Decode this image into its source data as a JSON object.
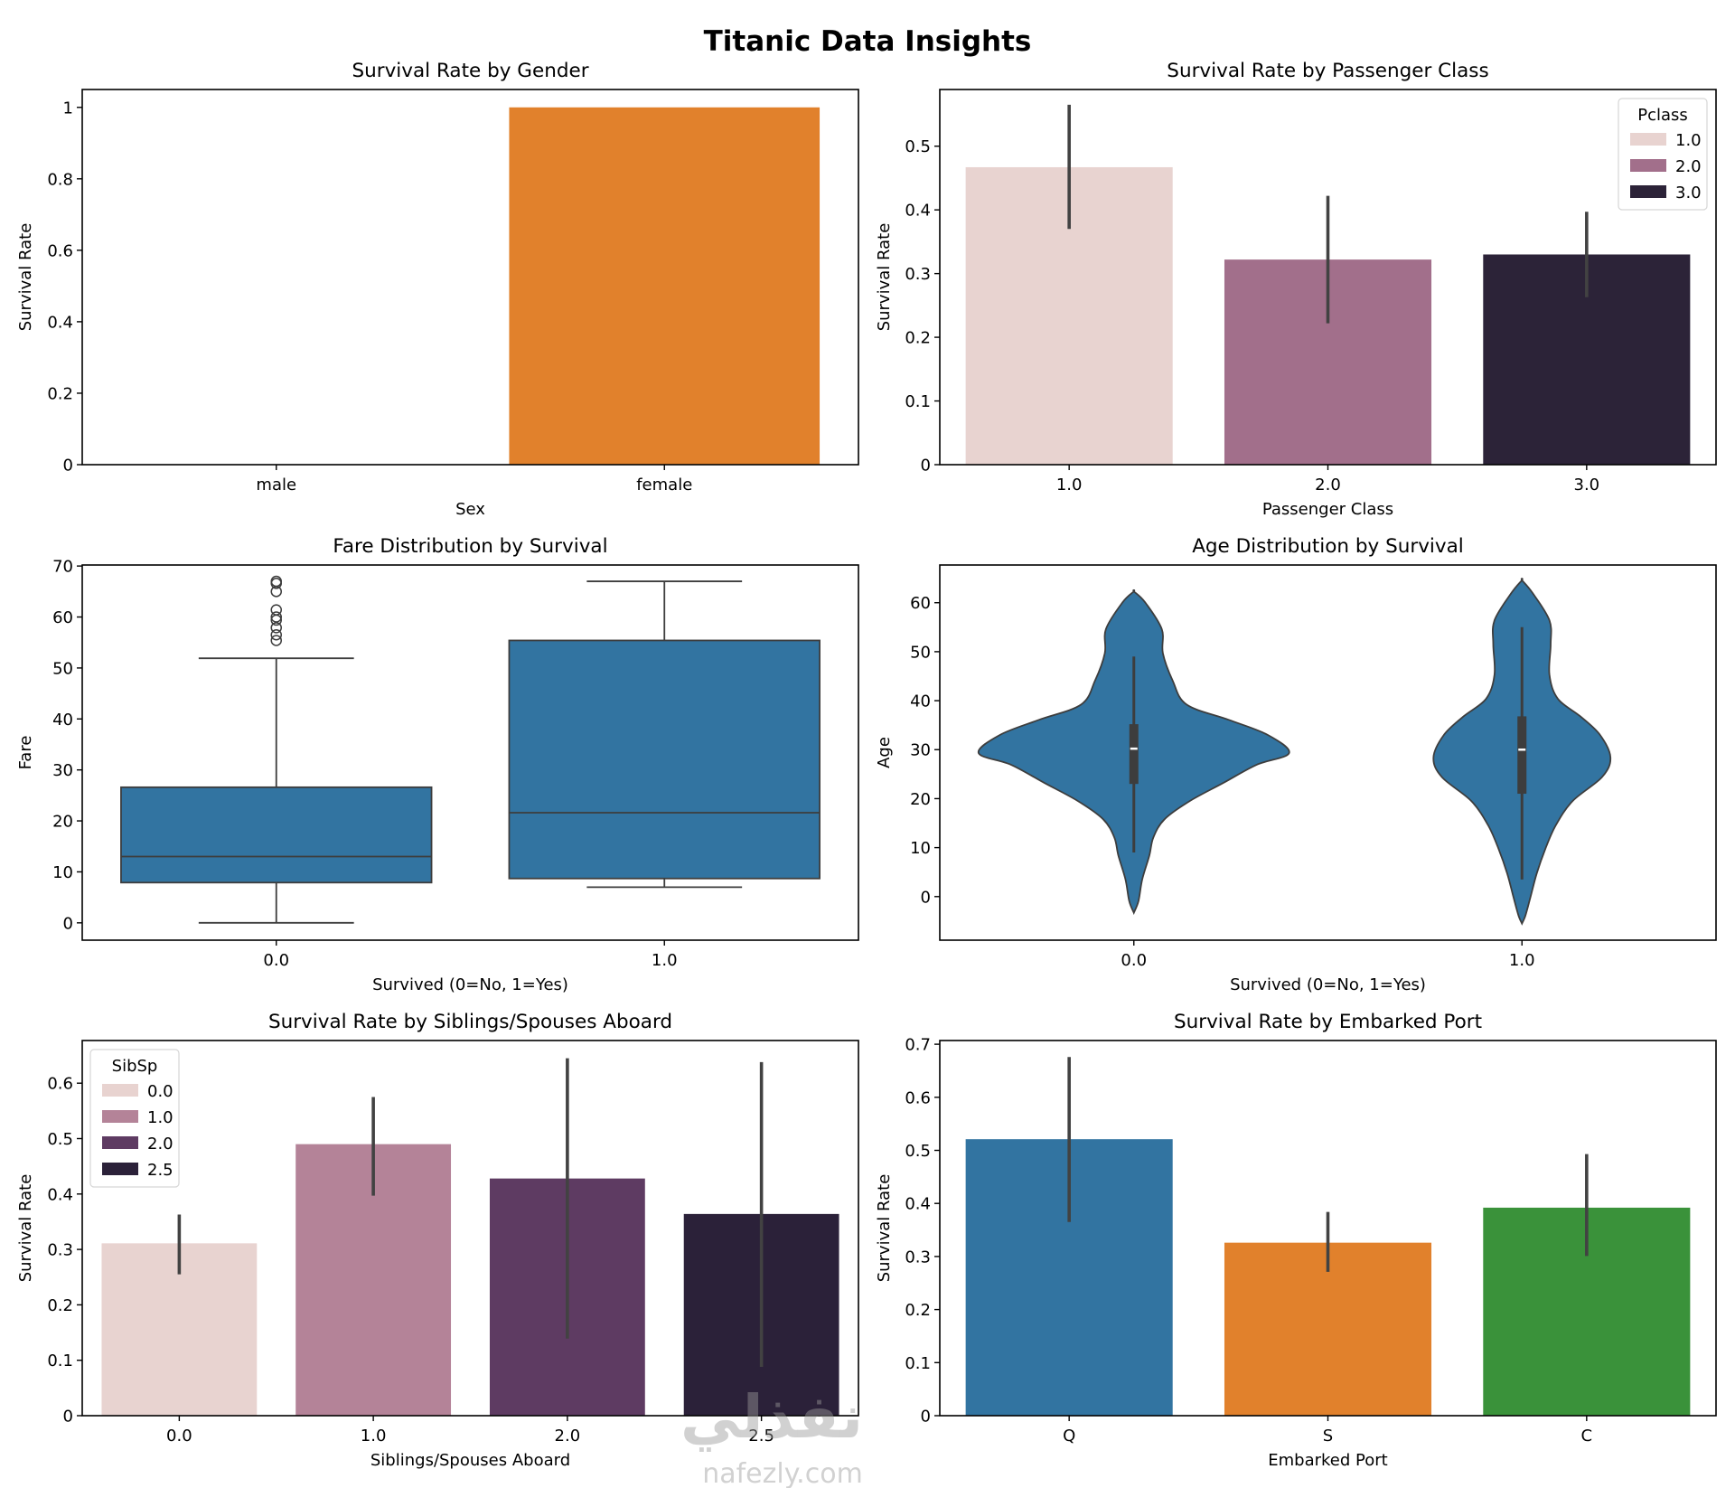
{
  "figure": {
    "title": "Titanic Data Insights",
    "watermark": {
      "arabic": "نفذلي",
      "latin": "nafezly.com"
    }
  },
  "chart_data": [
    {
      "id": "gender",
      "type": "bar",
      "title": "Survival Rate by Gender",
      "xlabel": "Sex",
      "ylabel": "Survival Rate",
      "categories": [
        "male",
        "female"
      ],
      "values": [
        0.0,
        1.0
      ],
      "colors": [
        "#3274a1",
        "#e1812c"
      ],
      "ylim": [
        0,
        1.05
      ],
      "yticks": [
        0.0,
        0.2,
        0.4,
        0.6,
        0.8,
        1.0
      ],
      "ytick_labels": [
        "0.0",
        "0.2",
        "0.4",
        "0.6",
        "0.8",
        "1.0"
      ],
      "grid": false,
      "legend": null
    },
    {
      "id": "pclass",
      "type": "bar",
      "title": "Survival Rate by Passenger Class",
      "xlabel": "Passenger Class",
      "ylabel": "Survival Rate",
      "categories": [
        "1.0",
        "2.0",
        "3.0"
      ],
      "values": [
        0.467,
        0.322,
        0.33
      ],
      "ci": [
        [
          0.37,
          0.565
        ],
        [
          0.222,
          0.422
        ],
        [
          0.263,
          0.397
        ]
      ],
      "colors": [
        "#e8d3d0",
        "#a26f8b",
        "#2c2338"
      ],
      "ylim": [
        0,
        0.589
      ],
      "yticks": [
        0.0,
        0.1,
        0.2,
        0.3,
        0.4,
        0.5
      ],
      "ytick_labels": [
        "0.0",
        "0.1",
        "0.2",
        "0.3",
        "0.4",
        "0.5"
      ],
      "grid": false,
      "legend": {
        "title": "Pclass",
        "labels": [
          "1.0",
          "2.0",
          "3.0"
        ],
        "placement": "top-right"
      }
    },
    {
      "id": "fare",
      "type": "box",
      "title": "Fare Distribution by Survival",
      "xlabel": "Survived (0=No, 1=Yes)",
      "ylabel": "Fare",
      "categories": [
        "0.0",
        "1.0"
      ],
      "boxes": [
        {
          "whisker_low": 0.0,
          "q1": 7.9,
          "median": 13.0,
          "q3": 26.6,
          "whisker_high": 51.9,
          "outliers": [
            55.4,
            56.5,
            57.9,
            59.4,
            60.0,
            61.4,
            65.0,
            66.6,
            67.0
          ]
        },
        {
          "whisker_low": 7.0,
          "q1": 8.7,
          "median": 21.6,
          "q3": 55.4,
          "whisker_high": 67.0,
          "outliers": []
        }
      ],
      "color": "#3274a1",
      "ylim": [
        -3.4,
        70.2
      ],
      "yticks": [
        0,
        10,
        20,
        30,
        40,
        50,
        60,
        70
      ],
      "ytick_labels": [
        "0",
        "10",
        "20",
        "30",
        "40",
        "50",
        "60",
        "70"
      ],
      "grid": false,
      "legend": null
    },
    {
      "id": "age",
      "type": "violin",
      "title": "Age Distribution by Survival",
      "xlabel": "Survived (0=No, 1=Yes)",
      "ylabel": "Age",
      "categories": [
        "0.0",
        "1.0"
      ],
      "violins": [
        {
          "q1": 23.0,
          "median": 30.2,
          "q3": 35.2,
          "whisker_low": 9.0,
          "whisker_high": 49.0,
          "density": [
            [
              -3.3,
              0.0
            ],
            [
              -0.9,
              0.03
            ],
            [
              3.5,
              0.054
            ],
            [
              8.4,
              0.1
            ],
            [
              12.1,
              0.126
            ],
            [
              15.8,
              0.198
            ],
            [
              19.5,
              0.36
            ],
            [
              23.2,
              0.576
            ],
            [
              26.9,
              0.79
            ],
            [
              29.3,
              1.0
            ],
            [
              33.0,
              0.863
            ],
            [
              36.1,
              0.61
            ],
            [
              39.2,
              0.34
            ],
            [
              44.1,
              0.25
            ],
            [
              49.7,
              0.187
            ],
            [
              54.6,
              0.18
            ],
            [
              60.1,
              0.072
            ],
            [
              62.3,
              0.0
            ]
          ]
        },
        {
          "q1": 21.0,
          "median": 30.0,
          "q3": 36.8,
          "whisker_low": 3.5,
          "whisker_high": 55.0,
          "density": [
            [
              -5.5,
              0.0
            ],
            [
              -3.9,
              0.022
            ],
            [
              -0.2,
              0.054
            ],
            [
              4.7,
              0.095
            ],
            [
              9.6,
              0.149
            ],
            [
              14.5,
              0.217
            ],
            [
              19.5,
              0.326
            ],
            [
              24.4,
              0.516
            ],
            [
              28.4,
              0.57
            ],
            [
              33.0,
              0.503
            ],
            [
              36.7,
              0.38
            ],
            [
              40.4,
              0.231
            ],
            [
              45.3,
              0.177
            ],
            [
              51.5,
              0.185
            ],
            [
              56.4,
              0.177
            ],
            [
              62.0,
              0.068
            ],
            [
              64.6,
              0.0
            ]
          ]
        }
      ],
      "color": "#3274a1",
      "ylim": [
        -8.9,
        67.7
      ],
      "yticks": [
        0,
        10,
        20,
        30,
        40,
        50,
        60
      ],
      "ytick_labels": [
        "0",
        "10",
        "20",
        "30",
        "40",
        "50",
        "60"
      ],
      "grid": false,
      "legend": null
    },
    {
      "id": "sibsp",
      "type": "bar",
      "title": "Survival Rate by Siblings/Spouses Aboard",
      "xlabel": "Siblings/Spouses Aboard",
      "ylabel": "Survival Rate",
      "categories": [
        "0.0",
        "1.0",
        "2.0",
        "2.5"
      ],
      "values": [
        0.311,
        0.49,
        0.428,
        0.364
      ],
      "ci": [
        [
          0.255,
          0.363
        ],
        [
          0.397,
          0.575
        ],
        [
          0.139,
          0.645
        ],
        [
          0.088,
          0.638
        ]
      ],
      "colors": [
        "#e8d3d0",
        "#b48398",
        "#5e3b62",
        "#2b2139"
      ],
      "ylim": [
        0,
        0.677
      ],
      "yticks": [
        0.0,
        0.1,
        0.2,
        0.3,
        0.4,
        0.5,
        0.6
      ],
      "ytick_labels": [
        "0.0",
        "0.1",
        "0.2",
        "0.3",
        "0.4",
        "0.5",
        "0.6"
      ],
      "grid": false,
      "legend": {
        "title": "SibSp",
        "labels": [
          "0.0",
          "1.0",
          "2.0",
          "2.5"
        ],
        "placement": "top-left"
      }
    },
    {
      "id": "embarked",
      "type": "bar",
      "title": "Survival Rate by Embarked Port",
      "xlabel": "Embarked Port",
      "ylabel": "Survival Rate",
      "categories": [
        "Q",
        "S",
        "C"
      ],
      "values": [
        0.521,
        0.326,
        0.392
      ],
      "ci": [
        [
          0.365,
          0.676
        ],
        [
          0.271,
          0.384
        ],
        [
          0.301,
          0.493
        ]
      ],
      "colors": [
        "#3274a1",
        "#e1812c",
        "#3a923a"
      ],
      "ylim": [
        0,
        0.707
      ],
      "yticks": [
        0.0,
        0.1,
        0.2,
        0.3,
        0.4,
        0.5,
        0.6,
        0.7
      ],
      "ytick_labels": [
        "0.0",
        "0.1",
        "0.2",
        "0.3",
        "0.4",
        "0.5",
        "0.6",
        "0.7"
      ],
      "grid": false,
      "legend": null
    }
  ]
}
